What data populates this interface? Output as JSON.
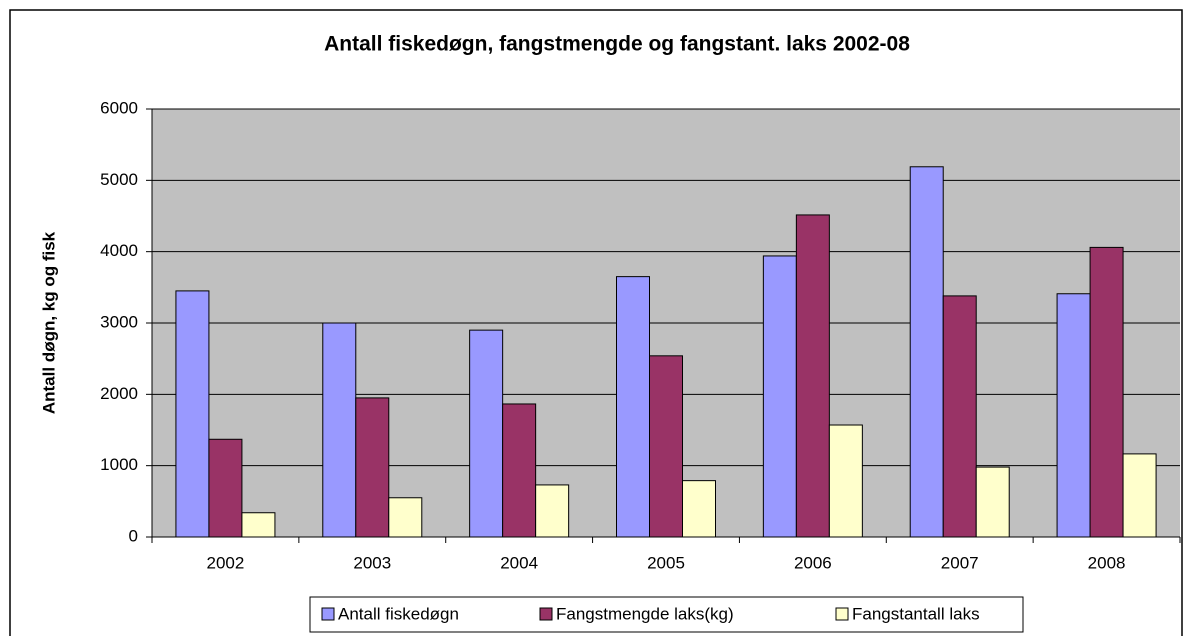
{
  "chart_data": {
    "type": "bar",
    "title": "Antall fiskedøgn, fangstmengde og fangstant. laks 2002-08",
    "y_label": "Antall døgn, kg og fisk",
    "categories": [
      "2002",
      "2003",
      "2004",
      "2005",
      "2006",
      "2007",
      "2008"
    ],
    "series": [
      {
        "name": "Antall fiskedøgn",
        "color": "#9999ff",
        "values": [
          3450,
          3000,
          2900,
          3650,
          3940,
          5190,
          3410
        ]
      },
      {
        "name": "Fangstmengde laks(kg)",
        "color": "#993366",
        "values": [
          1370,
          1950,
          1865,
          2540,
          4515,
          3380,
          4060
        ]
      },
      {
        "name": "Fangstantall laks",
        "color": "#ffffcc",
        "values": [
          340,
          550,
          730,
          790,
          1570,
          980,
          1165
        ]
      }
    ],
    "ylim": [
      0,
      6000
    ],
    "yticks": [
      0,
      1000,
      2000,
      3000,
      4000,
      5000,
      6000
    ],
    "grid": true,
    "legend": "bottom"
  }
}
